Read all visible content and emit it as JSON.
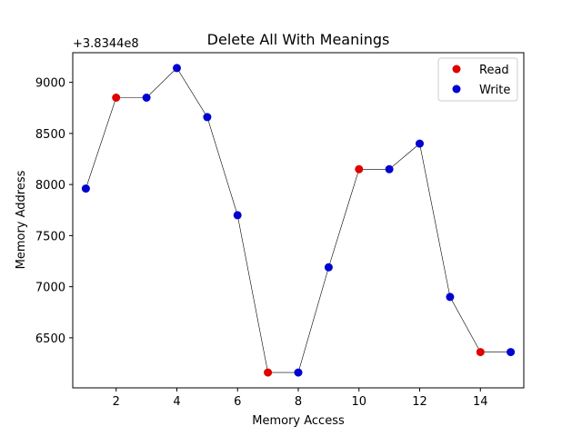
{
  "chart_data": {
    "type": "scatter",
    "title": "Delete All With Meanings",
    "xlabel": "Memory Access",
    "ylabel": "Memory Address",
    "y_offset_label": "+3.8344e8",
    "y_offset": 383440000,
    "xlim": [
      0.57,
      15.43
    ],
    "ylim": [
      6010,
      9290
    ],
    "x_ticks": [
      2,
      4,
      6,
      8,
      10,
      12,
      14
    ],
    "y_ticks": [
      6500,
      7000,
      7500,
      8000,
      8500,
      9000
    ],
    "grid": false,
    "legend_position": "top-right",
    "line_color": "#000000",
    "series": [
      {
        "name": "Read",
        "color": "#e00000"
      },
      {
        "name": "Write",
        "color": "#0000d0"
      }
    ],
    "points": [
      {
        "x": 1,
        "y": 7960,
        "series": "Write"
      },
      {
        "x": 2,
        "y": 8850,
        "series": "Read"
      },
      {
        "x": 3,
        "y": 8850,
        "series": "Write"
      },
      {
        "x": 4,
        "y": 9140,
        "series": "Write"
      },
      {
        "x": 5,
        "y": 8660,
        "series": "Write"
      },
      {
        "x": 6,
        "y": 7700,
        "series": "Write"
      },
      {
        "x": 7,
        "y": 6160,
        "series": "Read"
      },
      {
        "x": 8,
        "y": 6160,
        "series": "Write"
      },
      {
        "x": 9,
        "y": 7190,
        "series": "Write"
      },
      {
        "x": 10,
        "y": 8150,
        "series": "Read"
      },
      {
        "x": 11,
        "y": 8150,
        "series": "Write"
      },
      {
        "x": 12,
        "y": 8400,
        "series": "Write"
      },
      {
        "x": 13,
        "y": 6900,
        "series": "Write"
      },
      {
        "x": 14,
        "y": 6360,
        "series": "Read"
      },
      {
        "x": 15,
        "y": 6360,
        "series": "Write"
      }
    ]
  }
}
